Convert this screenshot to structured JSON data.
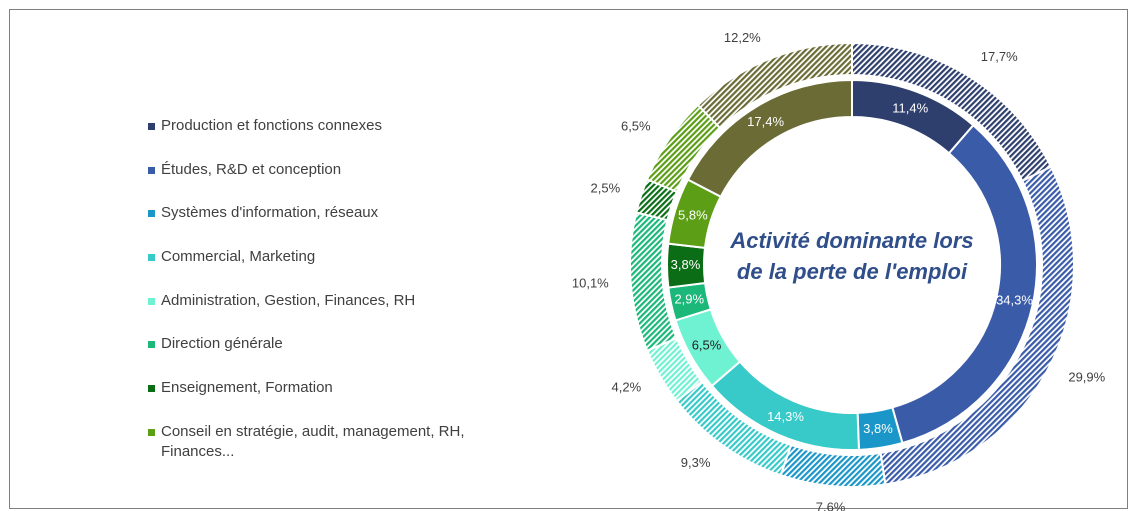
{
  "chart_data": {
    "type": "donut",
    "title": "Activité dominante lors de la perte de l'emploi",
    "categories": [
      "Production et fonctions connexes",
      "Études, R&D et conception",
      "Systèmes d'information, réseaux",
      "Commercial, Marketing",
      "Administration, Gestion, Finances, RH",
      "Direction générale",
      "Enseignement, Formation",
      "Conseil en stratégie, audit, management, RH, Finances...",
      null
    ],
    "colors": [
      "#2e3f6e",
      "#3a5ba8",
      "#1a96c8",
      "#38c9c9",
      "#6ff2d2",
      "#1cb87a",
      "#0b6e16",
      "#5c9e16",
      "#6b6b36"
    ],
    "series": [
      {
        "ring": "inner",
        "values": [
          11.4,
          34.3,
          3.8,
          14.3,
          6.5,
          2.9,
          3.8,
          5.8,
          17.4
        ],
        "value_labels": [
          "11,4%",
          "34,3%",
          "3,8%",
          "14,3%",
          "6,5%",
          "2,9%",
          "3,8%",
          "5,8%",
          "17,4%"
        ]
      },
      {
        "ring": "outer",
        "hatched": true,
        "values": [
          17.7,
          29.9,
          7.6,
          9.3,
          4.2,
          10.1,
          2.5,
          6.5,
          12.2
        ],
        "value_labels": [
          "17,7%",
          "29,9%",
          "7,6%",
          "9,3%",
          "4,2%",
          "10,1%",
          "2,5%",
          "6,5%",
          "12,2%"
        ]
      }
    ]
  }
}
